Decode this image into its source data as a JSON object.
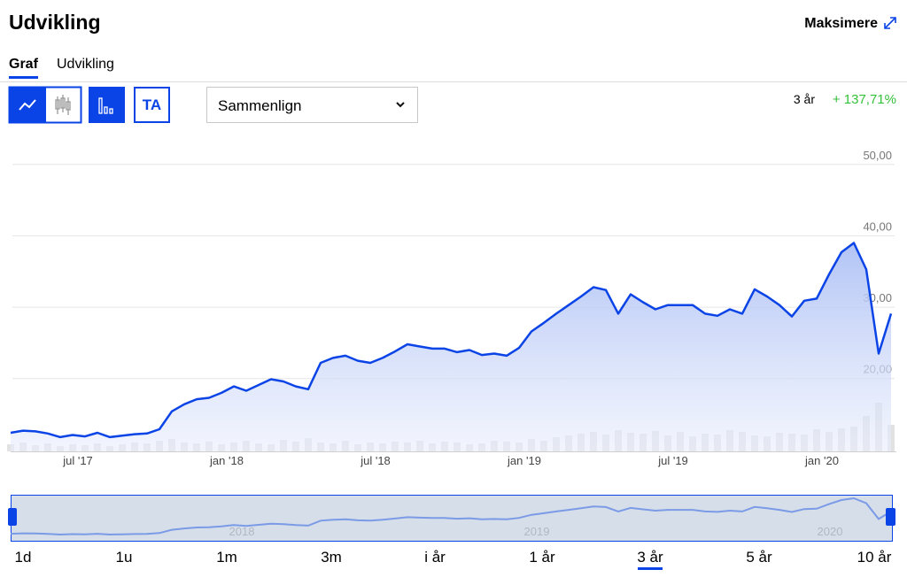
{
  "header": {
    "title": "Udvikling",
    "maximize": "Maksimere"
  },
  "tabs": [
    "Graf",
    "Udvikling"
  ],
  "toolbar": {
    "ta": "TA",
    "compare": "Sammenlign"
  },
  "performance": {
    "period": "3 år",
    "change": "+ 137,71%"
  },
  "chart_data": {
    "type": "line",
    "categories": [
      null,
      null,
      null,
      null,
      null,
      "jul '17",
      null,
      null,
      null,
      null,
      null,
      null,
      null,
      null,
      null,
      null,
      null,
      "jan '18",
      null,
      null,
      null,
      null,
      null,
      null,
      null,
      null,
      null,
      null,
      null,
      "jul '18",
      null,
      null,
      null,
      null,
      null,
      null,
      null,
      null,
      null,
      null,
      null,
      "jan '19",
      null,
      null,
      null,
      null,
      null,
      null,
      null,
      null,
      null,
      null,
      null,
      "jul '19",
      null,
      null,
      null,
      null,
      null,
      null,
      null,
      null,
      null,
      null,
      null,
      "jan '20",
      null,
      null,
      null,
      null,
      null,
      null
    ],
    "values": [
      12.4,
      12.7,
      12.6,
      12.3,
      11.8,
      12.1,
      11.9,
      12.4,
      11.8,
      12.0,
      12.2,
      12.3,
      12.9,
      15.4,
      16.4,
      17.1,
      17.3,
      18.0,
      18.9,
      18.3,
      19.1,
      19.9,
      19.6,
      18.9,
      18.5,
      22.2,
      22.9,
      23.2,
      22.5,
      22.2,
      22.9,
      23.8,
      24.8,
      24.5,
      24.2,
      24.2,
      23.7,
      24.0,
      23.3,
      23.5,
      23.2,
      24.3,
      26.6,
      27.8,
      29.1,
      30.3,
      31.5,
      32.8,
      32.4,
      29.1,
      31.8,
      30.7,
      29.7,
      30.3,
      30.3,
      30.3,
      29.1,
      28.8,
      29.7,
      29.1,
      32.5,
      31.5,
      30.3,
      28.7,
      30.9,
      31.2,
      34.6,
      37.7,
      39.0,
      35.3,
      23.5,
      29.1
    ],
    "volume": [
      8,
      10,
      7,
      9,
      6,
      8,
      7,
      9,
      6,
      8,
      10,
      9,
      12,
      14,
      10,
      9,
      11,
      8,
      10,
      12,
      9,
      8,
      13,
      11,
      15,
      10,
      9,
      12,
      8,
      10,
      9,
      11,
      10,
      12,
      9,
      11,
      10,
      8,
      9,
      12,
      11,
      10,
      14,
      12,
      16,
      18,
      20,
      22,
      19,
      24,
      21,
      20,
      23,
      18,
      22,
      17,
      20,
      19,
      24,
      22,
      18,
      17,
      21,
      20,
      19,
      25,
      22,
      26,
      28,
      40,
      55,
      30
    ],
    "color": "#0b44e6",
    "ylim": [
      9.8,
      53.2
    ],
    "yticks": [
      {
        "value": 20,
        "label": "20,00"
      },
      {
        "value": 30,
        "label": "30,00"
      },
      {
        "value": 40,
        "label": "40,00"
      },
      {
        "value": 50,
        "label": "50,00"
      }
    ],
    "grid": true
  },
  "navigator": {
    "labels": [
      "2018",
      "2019",
      "2020"
    ]
  },
  "ranges": [
    "1d",
    "1u",
    "1m",
    "3m",
    "i år",
    "1 år",
    "3 år",
    "5 år",
    "10 år"
  ]
}
